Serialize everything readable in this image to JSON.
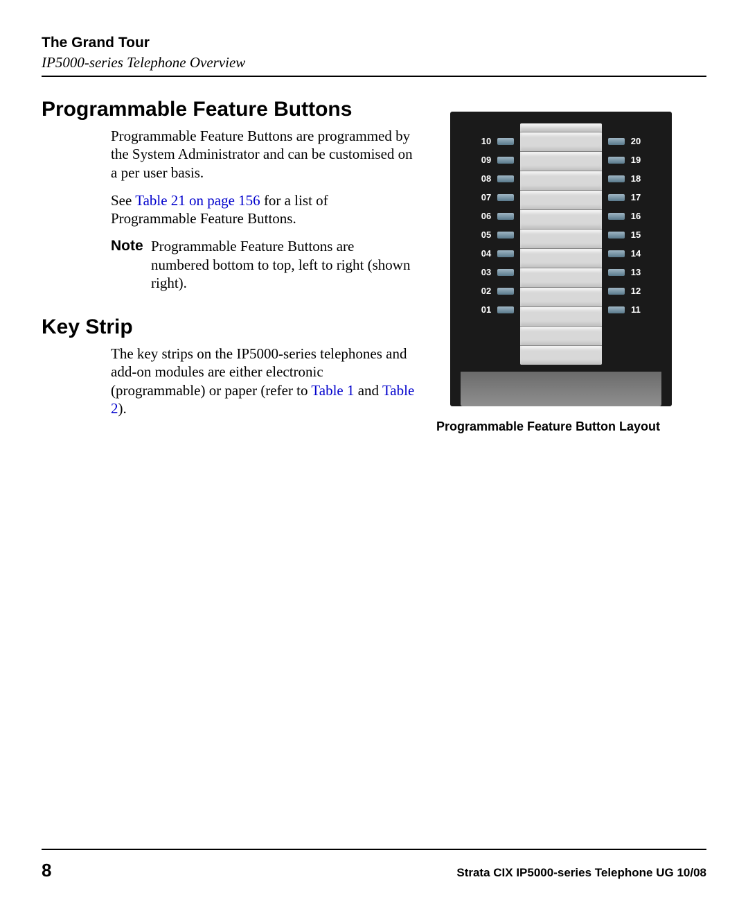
{
  "header": {
    "title": "The Grand Tour",
    "subtitle": "IP5000-series Telephone Overview"
  },
  "sections": {
    "pfb": {
      "heading": "Programmable Feature Buttons",
      "para1": "Programmable Feature Buttons are programmed by the System Administrator and can be customised on a per user basis.",
      "para2_pre": "See ",
      "para2_link": "Table 21 on page 156",
      "para2_post": " for a list of Programmable Feature Buttons.",
      "note_label": "Note",
      "note_text": "Programmable Feature Buttons are numbered bottom to top, left to right (shown right)."
    },
    "keystrip": {
      "heading": "Key Strip",
      "para_pre": "The key strips on the IP5000-series telephones and add-on modules are either electronic (programmable) or paper (refer to ",
      "link1": "Table 1",
      "mid": " and ",
      "link2": "Table 2",
      "post": ")."
    }
  },
  "diagram": {
    "caption": "Programmable Feature Button Layout",
    "left_numbers": [
      "10",
      "09",
      "08",
      "07",
      "06",
      "05",
      "04",
      "03",
      "02",
      "01"
    ],
    "right_numbers": [
      "20",
      "19",
      "18",
      "17",
      "16",
      "15",
      "14",
      "13",
      "12",
      "11"
    ],
    "rows": 10,
    "extra_strip_rows": 2,
    "colors": {
      "panel_bg": "#1a1a1a",
      "number_text": "#ffffff",
      "button_top": "#9fb6c4",
      "button_bottom": "#5a7a8c",
      "strip_bg": "#d8d8d8",
      "strip_divider": "#848484",
      "base_top": "#6b6b6b",
      "base_bottom": "#8f8f8f"
    },
    "fonts": {
      "number_fontsize": 13,
      "caption_fontsize": 18
    }
  },
  "footer": {
    "page_number": "8",
    "doc_id": "Strata CIX IP5000-series Telephone UG    10/08"
  },
  "link_color": "#0000cc"
}
